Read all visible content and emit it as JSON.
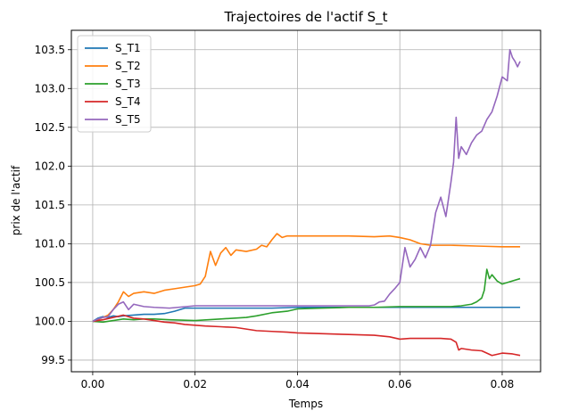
{
  "chart_data": {
    "type": "line",
    "title": "Trajectoires de l'actif  S_t",
    "xlabel": "Temps",
    "ylabel": "prix de l'actif",
    "xlim": [
      -0.00417,
      0.0875
    ],
    "ylim": [
      99.35,
      103.75
    ],
    "xticks": [
      0.0,
      0.02,
      0.04,
      0.06,
      0.08
    ],
    "xtick_labels": [
      "0.00",
      "0.02",
      "0.04",
      "0.06",
      "0.08"
    ],
    "yticks": [
      99.5,
      100.0,
      100.5,
      101.0,
      101.5,
      102.0,
      102.5,
      103.0,
      103.5
    ],
    "ytick_labels": [
      "99.5",
      "100.0",
      "100.5",
      "101.0",
      "101.5",
      "102.0",
      "102.5",
      "103.0",
      "103.5"
    ],
    "grid": true,
    "legend_position": "top-left",
    "series": [
      {
        "name": "S_T1",
        "color": "#1f77b4",
        "x": [
          0.0,
          0.001,
          0.002,
          0.003,
          0.004,
          0.005,
          0.006,
          0.008,
          0.01,
          0.012,
          0.014,
          0.016,
          0.018,
          0.02,
          0.025,
          0.03,
          0.035,
          0.04,
          0.05,
          0.06,
          0.07,
          0.08,
          0.0835
        ],
        "y": [
          100.0,
          100.04,
          100.06,
          100.05,
          100.07,
          100.06,
          100.07,
          100.08,
          100.09,
          100.09,
          100.1,
          100.13,
          100.17,
          100.17,
          100.17,
          100.17,
          100.17,
          100.18,
          100.18,
          100.18,
          100.18,
          100.18,
          100.18
        ]
      },
      {
        "name": "S_T2",
        "color": "#ff7f0e",
        "x": [
          0.0,
          0.001,
          0.002,
          0.003,
          0.004,
          0.005,
          0.006,
          0.007,
          0.008,
          0.01,
          0.012,
          0.014,
          0.016,
          0.018,
          0.02,
          0.021,
          0.022,
          0.023,
          0.024,
          0.025,
          0.026,
          0.027,
          0.028,
          0.03,
          0.032,
          0.033,
          0.034,
          0.035,
          0.036,
          0.037,
          0.038,
          0.04,
          0.045,
          0.05,
          0.055,
          0.058,
          0.06,
          0.062,
          0.064,
          0.066,
          0.07,
          0.075,
          0.08,
          0.0835
        ],
        "y": [
          100.0,
          100.02,
          100.05,
          100.08,
          100.15,
          100.25,
          100.38,
          100.32,
          100.36,
          100.38,
          100.36,
          100.4,
          100.42,
          100.44,
          100.46,
          100.48,
          100.58,
          100.9,
          100.72,
          100.88,
          100.95,
          100.85,
          100.92,
          100.9,
          100.93,
          100.98,
          100.96,
          101.05,
          101.13,
          101.08,
          101.1,
          101.1,
          101.1,
          101.1,
          101.09,
          101.1,
          101.08,
          101.05,
          101.0,
          100.98,
          100.98,
          100.97,
          100.96,
          100.96
        ]
      },
      {
        "name": "S_T3",
        "color": "#2ca02c",
        "x": [
          0.0,
          0.002,
          0.004,
          0.006,
          0.008,
          0.01,
          0.012,
          0.015,
          0.02,
          0.025,
          0.03,
          0.032,
          0.035,
          0.038,
          0.04,
          0.045,
          0.05,
          0.055,
          0.06,
          0.065,
          0.07,
          0.072,
          0.074,
          0.075,
          0.076,
          0.0765,
          0.077,
          0.0775,
          0.078,
          0.079,
          0.08,
          0.082,
          0.0835
        ],
        "y": [
          100.0,
          99.99,
          100.01,
          100.03,
          100.02,
          100.03,
          100.03,
          100.02,
          100.01,
          100.03,
          100.05,
          100.07,
          100.11,
          100.13,
          100.16,
          100.17,
          100.18,
          100.18,
          100.19,
          100.19,
          100.19,
          100.2,
          100.22,
          100.25,
          100.3,
          100.4,
          100.67,
          100.55,
          100.6,
          100.52,
          100.48,
          100.52,
          100.55
        ]
      },
      {
        "name": "S_T4",
        "color": "#d62728",
        "x": [
          0.0,
          0.002,
          0.004,
          0.006,
          0.008,
          0.01,
          0.012,
          0.014,
          0.016,
          0.018,
          0.02,
          0.022,
          0.025,
          0.028,
          0.03,
          0.032,
          0.035,
          0.038,
          0.04,
          0.045,
          0.05,
          0.055,
          0.058,
          0.06,
          0.062,
          0.065,
          0.068,
          0.07,
          0.071,
          0.0715,
          0.072,
          0.074,
          0.076,
          0.078,
          0.08,
          0.082,
          0.0835
        ],
        "y": [
          100.0,
          100.02,
          100.05,
          100.08,
          100.04,
          100.03,
          100.01,
          99.99,
          99.98,
          99.96,
          99.95,
          99.94,
          99.93,
          99.92,
          99.9,
          99.88,
          99.87,
          99.86,
          99.85,
          99.84,
          99.83,
          99.82,
          99.8,
          99.77,
          99.78,
          99.78,
          99.78,
          99.77,
          99.73,
          99.63,
          99.65,
          99.63,
          99.62,
          99.56,
          99.59,
          99.58,
          99.56
        ]
      },
      {
        "name": "S_T5",
        "color": "#9467bd",
        "x": [
          0.0,
          0.001,
          0.002,
          0.003,
          0.004,
          0.005,
          0.006,
          0.007,
          0.008,
          0.01,
          0.012,
          0.015,
          0.02,
          0.025,
          0.03,
          0.035,
          0.04,
          0.045,
          0.05,
          0.054,
          0.055,
          0.056,
          0.057,
          0.058,
          0.059,
          0.06,
          0.061,
          0.062,
          0.063,
          0.064,
          0.065,
          0.066,
          0.067,
          0.068,
          0.069,
          0.07,
          0.0705,
          0.071,
          0.0715,
          0.072,
          0.073,
          0.074,
          0.075,
          0.076,
          0.077,
          0.078,
          0.079,
          0.08,
          0.081,
          0.0815,
          0.082,
          0.0825,
          0.083,
          0.0835
        ],
        "y": [
          100.0,
          100.03,
          100.05,
          100.06,
          100.15,
          100.22,
          100.25,
          100.15,
          100.22,
          100.19,
          100.18,
          100.17,
          100.2,
          100.2,
          100.2,
          100.2,
          100.2,
          100.2,
          100.2,
          100.2,
          100.21,
          100.25,
          100.26,
          100.35,
          100.42,
          100.5,
          100.95,
          100.7,
          100.8,
          100.95,
          100.82,
          100.98,
          101.4,
          101.6,
          101.35,
          101.8,
          102.05,
          102.63,
          102.1,
          102.25,
          102.15,
          102.3,
          102.4,
          102.45,
          102.6,
          102.7,
          102.9,
          103.15,
          103.1,
          103.5,
          103.4,
          103.35,
          103.28,
          103.35
        ]
      }
    ]
  }
}
